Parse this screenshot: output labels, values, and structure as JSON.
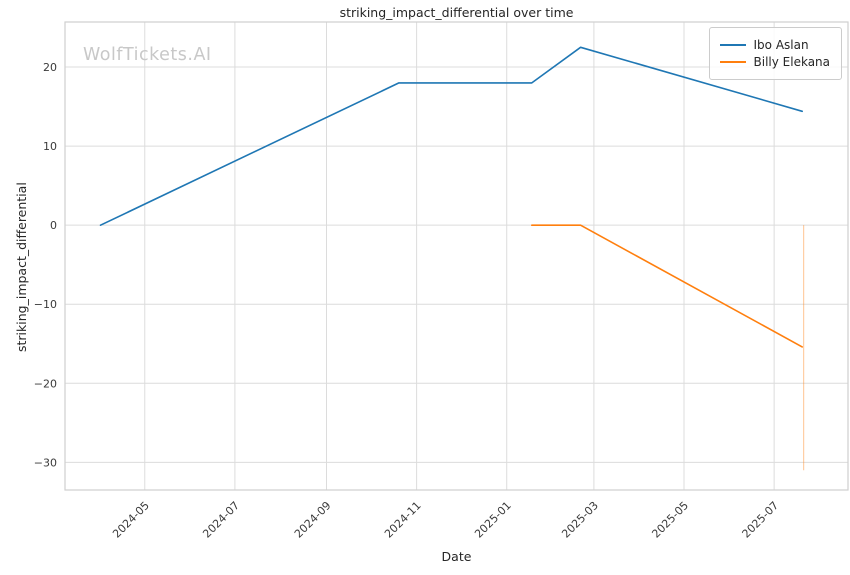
{
  "watermark": "WolfTickets.AI",
  "chart_data": {
    "type": "line",
    "title": "striking_impact_differential over time",
    "xlabel": "Date",
    "ylabel": "striking_impact_differential",
    "x_type": "date",
    "grid": true,
    "legend_position": "upper right",
    "grid_color": "#dcdcdc",
    "border_color": "#cfcfcf",
    "xlim": [
      "2024-03-08",
      "2025-08-20"
    ],
    "ylim": [
      -33.5,
      25.7
    ],
    "x_ticks": [
      {
        "date": "2024-05-01",
        "label": "2024-05"
      },
      {
        "date": "2024-07-01",
        "label": "2024-07"
      },
      {
        "date": "2024-09-01",
        "label": "2024-09"
      },
      {
        "date": "2024-11-01",
        "label": "2024-11"
      },
      {
        "date": "2025-01-01",
        "label": "2025-01"
      },
      {
        "date": "2025-03-01",
        "label": "2025-03"
      },
      {
        "date": "2025-05-01",
        "label": "2025-05"
      },
      {
        "date": "2025-07-01",
        "label": "2025-07"
      }
    ],
    "y_ticks": [
      {
        "value": -30,
        "label": "−30"
      },
      {
        "value": -20,
        "label": "−20"
      },
      {
        "value": -10,
        "label": "−10"
      },
      {
        "value": 0,
        "label": "0"
      },
      {
        "value": 10,
        "label": "10"
      },
      {
        "value": 20,
        "label": "20"
      }
    ],
    "series": [
      {
        "name": "Ibo Aslan",
        "color": "#1f77b4",
        "points": [
          {
            "date": "2024-04-01",
            "value": 0
          },
          {
            "date": "2024-10-20",
            "value": 18
          },
          {
            "date": "2025-01-18",
            "value": 18
          },
          {
            "date": "2025-02-20",
            "value": 22.5
          },
          {
            "date": "2025-07-20",
            "value": 14.4
          }
        ]
      },
      {
        "name": "Billy Elekana",
        "color": "#ff7f0e",
        "points": [
          {
            "date": "2025-01-18",
            "value": 0
          },
          {
            "date": "2025-02-20",
            "value": 0
          },
          {
            "date": "2025-07-20",
            "value": -15.4
          }
        ]
      }
    ],
    "annotations": [
      {
        "type": "vertical-segment",
        "series": "Billy Elekana",
        "date": "2025-07-21",
        "y_from": 0,
        "y_to": -31,
        "color": "#ff7f0e",
        "opacity": 0.45
      }
    ]
  }
}
